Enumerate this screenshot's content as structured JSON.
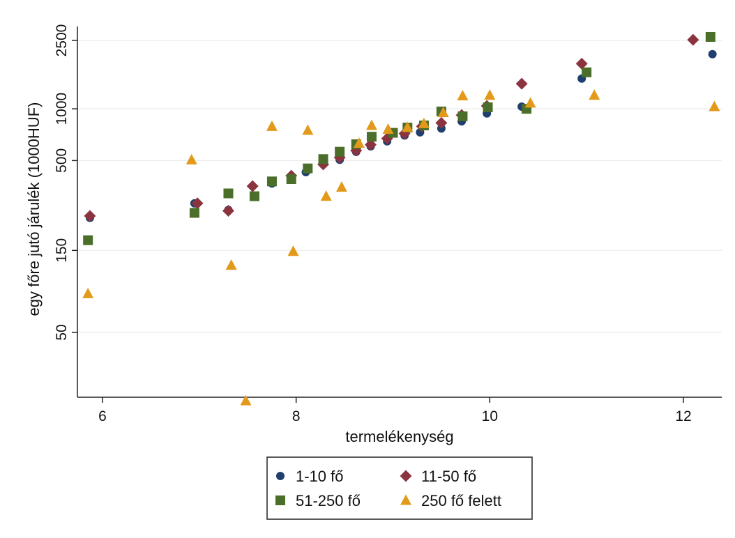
{
  "chart_data": {
    "type": "scatter",
    "title": "",
    "xlabel": "termelékenység",
    "ylabel": "egy főre jutó járulék (1000HUF)",
    "xlim": [
      5.8,
      12.4
    ],
    "ylim": [
      10,
      3000
    ],
    "y_scale": "log",
    "x_ticks": [
      6,
      8,
      10,
      12
    ],
    "y_ticks": [
      50,
      150,
      500,
      1000,
      2500
    ],
    "grid": "horizontal",
    "legend_position": "bottom",
    "series": [
      {
        "name": "1-10 fő",
        "marker": "circle",
        "color": "#1f3f6e",
        "points": [
          [
            5.87,
            232
          ],
          [
            6.95,
            282
          ],
          [
            7.3,
            258
          ],
          [
            7.75,
            368
          ],
          [
            7.95,
            396
          ],
          [
            8.1,
            428
          ],
          [
            8.28,
            475
          ],
          [
            8.45,
            505
          ],
          [
            8.62,
            562
          ],
          [
            8.77,
            605
          ],
          [
            8.94,
            647
          ],
          [
            9.12,
            700
          ],
          [
            9.28,
            730
          ],
          [
            9.5,
            768
          ],
          [
            9.71,
            845
          ],
          [
            9.97,
            940
          ],
          [
            10.33,
            1030
          ],
          [
            10.95,
            1500
          ],
          [
            12.3,
            2080
          ]
        ]
      },
      {
        "name": "11-50 fő",
        "marker": "diamond",
        "color": "#8b3440",
        "points": [
          [
            5.87,
            238
          ],
          [
            6.98,
            282
          ],
          [
            7.3,
            255
          ],
          [
            7.55,
            355
          ],
          [
            7.95,
            408
          ],
          [
            8.28,
            475
          ],
          [
            8.45,
            520
          ],
          [
            8.62,
            572
          ],
          [
            8.77,
            618
          ],
          [
            8.94,
            672
          ],
          [
            9.12,
            718
          ],
          [
            9.3,
            790
          ],
          [
            9.5,
            828
          ],
          [
            9.71,
            920
          ],
          [
            9.97,
            1040
          ],
          [
            10.33,
            1400
          ],
          [
            10.95,
            1830
          ],
          [
            12.1,
            2520
          ]
        ]
      },
      {
        "name": "51-250 fő",
        "marker": "square",
        "color": "#4b6e2a",
        "points": [
          [
            5.85,
            172
          ],
          [
            6.95,
            248
          ],
          [
            7.3,
            322
          ],
          [
            7.57,
            310
          ],
          [
            7.75,
            378
          ],
          [
            7.95,
            390
          ],
          [
            8.12,
            450
          ],
          [
            8.28,
            510
          ],
          [
            8.45,
            563
          ],
          [
            8.62,
            622
          ],
          [
            8.78,
            688
          ],
          [
            9.0,
            725
          ],
          [
            9.15,
            778
          ],
          [
            9.32,
            800
          ],
          [
            9.5,
            965
          ],
          [
            9.72,
            905
          ],
          [
            9.98,
            1020
          ],
          [
            10.38,
            1000
          ],
          [
            11.0,
            1630
          ],
          [
            12.28,
            2620
          ]
        ]
      },
      {
        "name": "250 fő felett",
        "marker": "triangle",
        "color": "#e39a1a",
        "points": [
          [
            5.85,
            84
          ],
          [
            6.92,
            505
          ],
          [
            7.33,
            123
          ],
          [
            7.48,
            20
          ],
          [
            7.75,
            790
          ],
          [
            7.97,
            148
          ],
          [
            8.12,
            750
          ],
          [
            8.31,
            310
          ],
          [
            8.47,
            350
          ],
          [
            8.65,
            630
          ],
          [
            8.78,
            800
          ],
          [
            8.95,
            760
          ],
          [
            9.15,
            780
          ],
          [
            9.32,
            820
          ],
          [
            9.52,
            950
          ],
          [
            9.72,
            1190
          ],
          [
            10.0,
            1200
          ],
          [
            10.42,
            1080
          ],
          [
            11.08,
            1200
          ],
          [
            12.32,
            1030
          ]
        ]
      }
    ]
  }
}
